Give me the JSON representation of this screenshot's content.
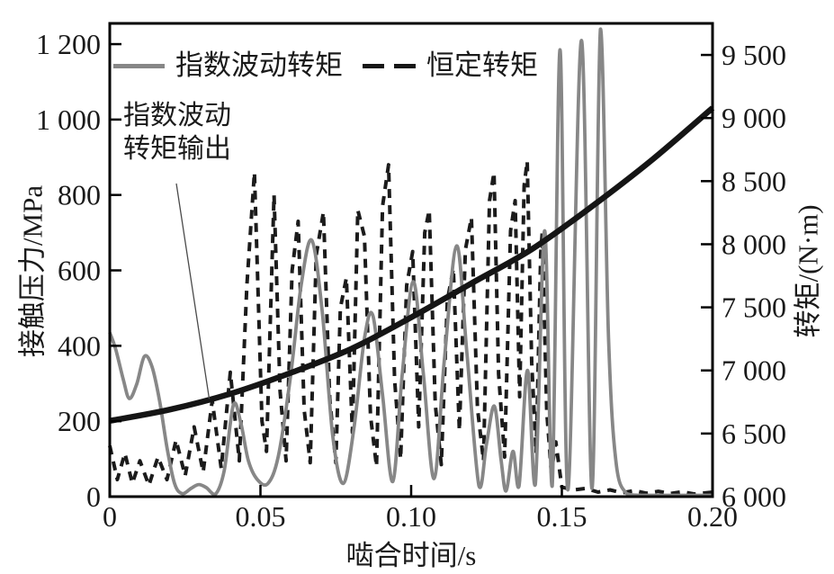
{
  "figure": {
    "background": "#ffffff"
  },
  "chart_data": {
    "type": "line",
    "title": "",
    "grid": false,
    "legend_position": "top-inside",
    "x_axis": {
      "label": "啮合时间/s",
      "min": 0,
      "max": 0.2,
      "ticks": [
        0,
        0.05,
        0.1,
        0.15,
        0.2
      ],
      "tick_labels": [
        "0",
        "0.05",
        "0.10",
        "0.15",
        "0.20"
      ]
    },
    "y_left": {
      "label": "接触压力/MPa",
      "min": 0,
      "max": 1255,
      "ticks": [
        0,
        200,
        400,
        600,
        800,
        1000,
        1200
      ],
      "tick_labels": [
        "0",
        "200",
        "400",
        "600",
        "800",
        "1 000",
        "1 200"
      ]
    },
    "y_right": {
      "label": "转矩/(N·m)",
      "min": 6000,
      "max": 9750,
      "ticks": [
        6000,
        6500,
        7000,
        7500,
        8000,
        8500,
        9000,
        9500
      ],
      "tick_labels": [
        "6 000",
        "6 500",
        "7 000",
        "7 500",
        "8 000",
        "8 500",
        "9 000",
        "9 500"
      ]
    },
    "series": [
      {
        "name": "指数波动转矩",
        "axis": "left",
        "style": "solid",
        "smooth": true,
        "color": "#878787",
        "width": 3.8,
        "points": [
          [
            0.0,
            435
          ],
          [
            0.002,
            390
          ],
          [
            0.0045,
            310
          ],
          [
            0.0065,
            260
          ],
          [
            0.009,
            300
          ],
          [
            0.0115,
            372
          ],
          [
            0.014,
            345
          ],
          [
            0.0165,
            255
          ],
          [
            0.019,
            130
          ],
          [
            0.0215,
            35
          ],
          [
            0.024,
            8
          ],
          [
            0.027,
            22
          ],
          [
            0.0295,
            32
          ],
          [
            0.032,
            24
          ],
          [
            0.035,
            6
          ],
          [
            0.038,
            70
          ],
          [
            0.041,
            243
          ],
          [
            0.0435,
            195
          ],
          [
            0.046,
            95
          ],
          [
            0.049,
            45
          ],
          [
            0.0525,
            35
          ],
          [
            0.056,
            110
          ],
          [
            0.06,
            320
          ],
          [
            0.0635,
            560
          ],
          [
            0.067,
            680
          ],
          [
            0.0705,
            490
          ],
          [
            0.074,
            160
          ],
          [
            0.0775,
            35
          ],
          [
            0.081,
            180
          ],
          [
            0.0845,
            420
          ],
          [
            0.0873,
            480
          ],
          [
            0.0905,
            270
          ],
          [
            0.0939,
            40
          ],
          [
            0.097,
            320
          ],
          [
            0.1007,
            570
          ],
          [
            0.104,
            330
          ],
          [
            0.1076,
            48
          ],
          [
            0.111,
            360
          ],
          [
            0.1151,
            665
          ],
          [
            0.1185,
            380
          ],
          [
            0.1225,
            28
          ],
          [
            0.125,
            140
          ],
          [
            0.1276,
            240
          ],
          [
            0.1298,
            100
          ],
          [
            0.1315,
            15
          ],
          [
            0.1338,
            120
          ],
          [
            0.1358,
            28
          ],
          [
            0.1386,
            335
          ],
          [
            0.1412,
            32
          ],
          [
            0.1443,
            705
          ],
          [
            0.1468,
            28
          ],
          [
            0.1494,
            1185
          ],
          [
            0.152,
            18
          ],
          [
            0.1565,
            1210
          ],
          [
            0.16,
            22
          ],
          [
            0.1628,
            1240
          ],
          [
            0.1655,
            420
          ],
          [
            0.168,
            90
          ],
          [
            0.1715,
            8
          ],
          [
            0.176,
            3
          ],
          [
            0.184,
            3
          ],
          [
            0.192,
            3
          ],
          [
            0.2,
            3
          ]
        ]
      },
      {
        "name": "恒定转矩",
        "axis": "left",
        "style": "dashed",
        "smooth": false,
        "color": "#1b1b1b",
        "width": 4,
        "dash": "10 8",
        "points": [
          [
            0.0,
            135
          ],
          [
            0.0025,
            45
          ],
          [
            0.005,
            115
          ],
          [
            0.0075,
            35
          ],
          [
            0.01,
            95
          ],
          [
            0.013,
            30
          ],
          [
            0.016,
            105
          ],
          [
            0.019,
            45
          ],
          [
            0.022,
            150
          ],
          [
            0.025,
            55
          ],
          [
            0.028,
            185
          ],
          [
            0.031,
            65
          ],
          [
            0.034,
            255
          ],
          [
            0.037,
            75
          ],
          [
            0.04,
            330
          ],
          [
            0.043,
            95
          ],
          [
            0.0455,
            560
          ],
          [
            0.048,
            860
          ],
          [
            0.0505,
            200
          ],
          [
            0.052,
            120
          ],
          [
            0.0545,
            800
          ],
          [
            0.0565,
            280
          ],
          [
            0.0585,
            95
          ],
          [
            0.0605,
            600
          ],
          [
            0.0625,
            730
          ],
          [
            0.0645,
            230
          ],
          [
            0.0665,
            90
          ],
          [
            0.0685,
            640
          ],
          [
            0.0709,
            755
          ],
          [
            0.073,
            260
          ],
          [
            0.075,
            90
          ],
          [
            0.0765,
            500
          ],
          [
            0.0785,
            580
          ],
          [
            0.0805,
            170
          ],
          [
            0.0823,
            760
          ],
          [
            0.0845,
            690
          ],
          [
            0.0865,
            215
          ],
          [
            0.0885,
            80
          ],
          [
            0.0905,
            770
          ],
          [
            0.0925,
            880
          ],
          [
            0.0945,
            310
          ],
          [
            0.0965,
            100
          ],
          [
            0.0985,
            560
          ],
          [
            0.1005,
            650
          ],
          [
            0.1025,
            185
          ],
          [
            0.1045,
            700
          ],
          [
            0.106,
            760
          ],
          [
            0.108,
            245
          ],
          [
            0.11,
            85
          ],
          [
            0.112,
            520
          ],
          [
            0.114,
            605
          ],
          [
            0.116,
            175
          ],
          [
            0.118,
            655
          ],
          [
            0.12,
            740
          ],
          [
            0.122,
            235
          ],
          [
            0.124,
            95
          ],
          [
            0.126,
            785
          ],
          [
            0.1275,
            860
          ],
          [
            0.129,
            325
          ],
          [
            0.131,
            105
          ],
          [
            0.133,
            705
          ],
          [
            0.1345,
            785
          ],
          [
            0.136,
            265
          ],
          [
            0.1375,
            825
          ],
          [
            0.1385,
            890
          ],
          [
            0.14,
            355
          ],
          [
            0.1415,
            115
          ],
          [
            0.143,
            645
          ],
          [
            0.1435,
            700
          ],
          [
            0.145,
            225
          ],
          [
            0.1465,
            65
          ],
          [
            0.148,
            145
          ],
          [
            0.15,
            25
          ],
          [
            0.154,
            18
          ],
          [
            0.158,
            22
          ],
          [
            0.162,
            12
          ],
          [
            0.166,
            18
          ],
          [
            0.17,
            10
          ],
          [
            0.174,
            16
          ],
          [
            0.178,
            9
          ],
          [
            0.182,
            14
          ],
          [
            0.186,
            8
          ],
          [
            0.19,
            13
          ],
          [
            0.194,
            7
          ],
          [
            0.2,
            12
          ]
        ]
      },
      {
        "name": "指数波动转矩输出",
        "axis": "right",
        "style": "solid",
        "smooth": true,
        "color": "#151515",
        "width": 6.5,
        "points": [
          [
            0,
            6600
          ],
          [
            0.02,
            6690
          ],
          [
            0.04,
            6815
          ],
          [
            0.06,
            6980
          ],
          [
            0.08,
            7170
          ],
          [
            0.1,
            7420
          ],
          [
            0.12,
            7690
          ],
          [
            0.14,
            7960
          ],
          [
            0.16,
            8300
          ],
          [
            0.18,
            8670
          ],
          [
            0.2,
            9080
          ]
        ]
      }
    ],
    "legend": [
      {
        "label": "指数波动转矩",
        "swatch": "solid-gray"
      },
      {
        "label": "恒定转矩",
        "swatch": "dashed-black"
      }
    ],
    "annotation": {
      "lines": [
        "指数波动",
        "转矩输出"
      ],
      "target": {
        "axis": "right",
        "t": 0.033,
        "value": 6775
      }
    }
  }
}
